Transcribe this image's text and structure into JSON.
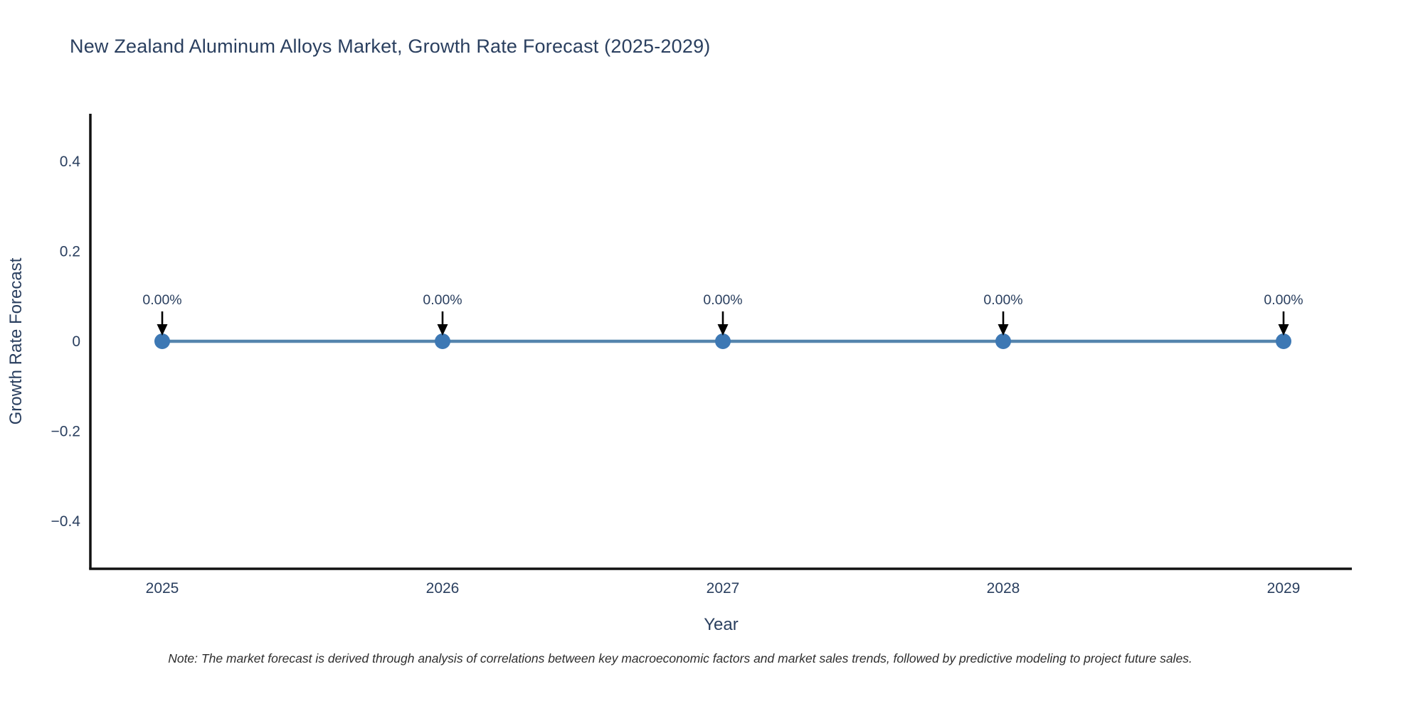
{
  "chart_data": {
    "type": "line",
    "title": "New Zealand Aluminum Alloys Market, Growth Rate Forecast (2025-2029)",
    "xlabel": "Year",
    "ylabel": "Growth Rate Forecast",
    "x": [
      "2025",
      "2026",
      "2027",
      "2028",
      "2029"
    ],
    "values": [
      0,
      0,
      0,
      0,
      0
    ],
    "point_labels": [
      "0.00%",
      "0.00%",
      "0.00%",
      "0.00%",
      "0.00%"
    ],
    "yticks": [
      0.4,
      0.2,
      0,
      -0.2,
      -0.4
    ],
    "ytick_labels": [
      "0.4",
      "0.2",
      "0",
      "−0.2",
      "−0.4"
    ],
    "ylim": [
      -0.51,
      0.51
    ],
    "grid": false,
    "legend": "none",
    "note": "Note: The market forecast is derived through analysis of correlations between key macroeconomic factors and market sales trends, followed by predictive modeling to project future sales.",
    "colors": {
      "line": "#5585ad",
      "marker": "#3d78b4",
      "axis": "#111111",
      "text": "#2a3f5f",
      "arrow": "#000000",
      "note_text": "#2e2e2e",
      "background": "#ffffff"
    }
  }
}
